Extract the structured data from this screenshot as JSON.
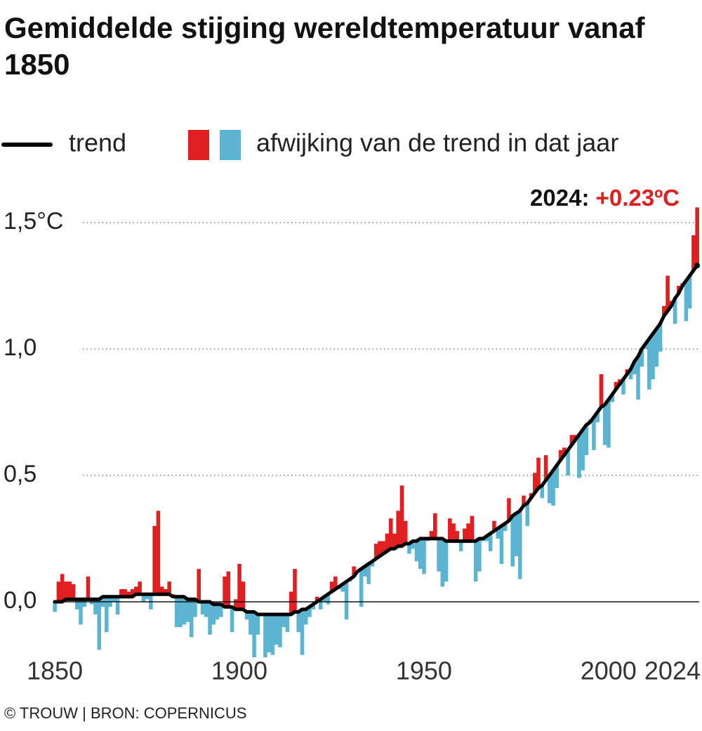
{
  "chart_data": {
    "type": "trend-bar",
    "title": "Gemiddelde stijging wereldtemperatuur vanaf 1850",
    "annotation": {
      "label": "2024:",
      "text": "+0.23ºC"
    },
    "source": "© TROUW | BRON: COPERNICUS",
    "x": [
      1850,
      1851,
      1852,
      1853,
      1854,
      1855,
      1856,
      1857,
      1858,
      1859,
      1860,
      1861,
      1862,
      1863,
      1864,
      1865,
      1866,
      1867,
      1868,
      1869,
      1870,
      1871,
      1872,
      1873,
      1874,
      1875,
      1876,
      1877,
      1878,
      1879,
      1880,
      1881,
      1882,
      1883,
      1884,
      1885,
      1886,
      1887,
      1888,
      1889,
      1890,
      1891,
      1892,
      1893,
      1894,
      1895,
      1896,
      1897,
      1898,
      1899,
      1900,
      1901,
      1902,
      1903,
      1904,
      1905,
      1906,
      1907,
      1908,
      1909,
      1910,
      1911,
      1912,
      1913,
      1914,
      1915,
      1916,
      1917,
      1918,
      1919,
      1920,
      1921,
      1922,
      1923,
      1924,
      1925,
      1926,
      1927,
      1928,
      1929,
      1930,
      1931,
      1932,
      1933,
      1934,
      1935,
      1936,
      1937,
      1938,
      1939,
      1940,
      1941,
      1942,
      1943,
      1944,
      1945,
      1946,
      1947,
      1948,
      1949,
      1950,
      1951,
      1952,
      1953,
      1954,
      1955,
      1956,
      1957,
      1958,
      1959,
      1960,
      1961,
      1962,
      1963,
      1964,
      1965,
      1966,
      1967,
      1968,
      1969,
      1970,
      1971,
      1972,
      1973,
      1974,
      1975,
      1976,
      1977,
      1978,
      1979,
      1980,
      1981,
      1982,
      1983,
      1984,
      1985,
      1986,
      1987,
      1988,
      1989,
      1990,
      1991,
      1992,
      1993,
      1994,
      1995,
      1996,
      1997,
      1998,
      1999,
      2000,
      2001,
      2002,
      2003,
      2004,
      2005,
      2006,
      2007,
      2008,
      2009,
      2010,
      2011,
      2012,
      2013,
      2014,
      2015,
      2016,
      2017,
      2018,
      2019,
      2020,
      2021,
      2022,
      2023,
      2024
    ],
    "series": [
      {
        "name": "trend",
        "color": "#000000",
        "values": [
          0.0,
          0.0,
          0.0,
          0.01,
          0.01,
          0.01,
          0.01,
          0.01,
          0.01,
          0.01,
          0.01,
          0.01,
          0.01,
          0.02,
          0.02,
          0.02,
          0.02,
          0.02,
          0.02,
          0.02,
          0.02,
          0.02,
          0.03,
          0.03,
          0.03,
          0.03,
          0.03,
          0.03,
          0.03,
          0.03,
          0.03,
          0.03,
          0.02,
          0.02,
          0.02,
          0.02,
          0.01,
          0.01,
          0.01,
          0.0,
          0.0,
          0.0,
          0.0,
          -0.01,
          -0.01,
          -0.01,
          -0.02,
          -0.02,
          -0.02,
          -0.03,
          -0.03,
          -0.03,
          -0.04,
          -0.04,
          -0.04,
          -0.05,
          -0.05,
          -0.05,
          -0.05,
          -0.05,
          -0.05,
          -0.05,
          -0.05,
          -0.05,
          -0.05,
          -0.04,
          -0.04,
          -0.03,
          -0.03,
          -0.02,
          -0.01,
          0.0,
          0.01,
          0.02,
          0.03,
          0.04,
          0.05,
          0.06,
          0.07,
          0.08,
          0.09,
          0.1,
          0.12,
          0.13,
          0.14,
          0.15,
          0.16,
          0.17,
          0.18,
          0.19,
          0.2,
          0.21,
          0.21,
          0.22,
          0.22,
          0.23,
          0.23,
          0.24,
          0.24,
          0.25,
          0.25,
          0.25,
          0.25,
          0.25,
          0.25,
          0.25,
          0.24,
          0.24,
          0.24,
          0.24,
          0.24,
          0.24,
          0.24,
          0.24,
          0.24,
          0.25,
          0.25,
          0.26,
          0.27,
          0.28,
          0.29,
          0.3,
          0.31,
          0.32,
          0.34,
          0.35,
          0.36,
          0.38,
          0.39,
          0.41,
          0.43,
          0.45,
          0.46,
          0.48,
          0.5,
          0.52,
          0.54,
          0.56,
          0.58,
          0.6,
          0.62,
          0.64,
          0.66,
          0.68,
          0.7,
          0.71,
          0.73,
          0.75,
          0.77,
          0.78,
          0.8,
          0.82,
          0.84,
          0.86,
          0.88,
          0.9,
          0.92,
          0.95,
          0.97,
          1.0,
          1.02,
          1.04,
          1.06,
          1.08,
          1.1,
          1.13,
          1.15,
          1.17,
          1.2,
          1.22,
          1.25,
          1.27,
          1.29,
          1.31,
          1.33
        ]
      },
      {
        "name": "afwijking van de trend in dat jaar",
        "colors": [
          "#e02020",
          "#5bb4d1"
        ],
        "values": [
          -0.04,
          0.08,
          0.11,
          0.08,
          0.08,
          0.07,
          -0.03,
          -0.09,
          -0.02,
          0.1,
          -0.01,
          -0.05,
          -0.19,
          -0.02,
          -0.12,
          -0.02,
          0.0,
          -0.05,
          0.05,
          0.05,
          0.04,
          0.05,
          0.06,
          0.08,
          0.0,
          0.01,
          -0.03,
          0.3,
          0.36,
          0.06,
          0.05,
          0.08,
          0.03,
          -0.1,
          -0.1,
          -0.09,
          -0.08,
          -0.14,
          -0.06,
          0.13,
          -0.05,
          -0.06,
          -0.13,
          -0.09,
          -0.07,
          -0.06,
          0.1,
          0.12,
          -0.12,
          0.01,
          0.15,
          0.08,
          -0.07,
          -0.13,
          -0.22,
          -0.13,
          -0.05,
          -0.22,
          -0.2,
          -0.21,
          -0.17,
          -0.18,
          -0.1,
          -0.12,
          0.04,
          0.13,
          -0.12,
          -0.21,
          -0.09,
          -0.06,
          -0.03,
          0.02,
          -0.03,
          0.0,
          -0.01,
          0.08,
          0.1,
          0.05,
          0.04,
          -0.07,
          0.08,
          0.14,
          0.12,
          -0.02,
          0.1,
          0.07,
          0.14,
          0.23,
          0.24,
          0.24,
          0.27,
          0.33,
          0.27,
          0.36,
          0.46,
          0.32,
          0.19,
          0.21,
          0.16,
          0.13,
          0.11,
          0.24,
          0.28,
          0.35,
          0.12,
          0.06,
          0.08,
          0.33,
          0.31,
          0.28,
          0.2,
          0.29,
          0.31,
          0.34,
          0.08,
          0.12,
          0.24,
          0.24,
          0.2,
          0.32,
          0.25,
          0.15,
          0.28,
          0.41,
          0.14,
          0.18,
          0.09,
          0.42,
          0.3,
          0.43,
          0.51,
          0.57,
          0.41,
          0.58,
          0.39,
          0.38,
          0.45,
          0.6,
          0.61,
          0.5,
          0.66,
          0.66,
          0.49,
          0.52,
          0.58,
          0.72,
          0.6,
          0.71,
          0.9,
          0.62,
          0.61,
          0.79,
          0.87,
          0.88,
          0.82,
          0.92,
          0.88,
          0.9,
          0.8,
          0.93,
          1.0,
          0.84,
          0.88,
          0.93,
          0.99,
          1.17,
          1.29,
          1.19,
          1.1,
          1.25,
          1.26,
          1.11,
          1.16,
          1.45,
          1.56
        ]
      }
    ],
    "xlim": [
      1850,
      2024
    ],
    "xticks": [
      1850,
      1900,
      1950,
      2000,
      2024
    ],
    "ylim": [
      -0.25,
      1.65
    ],
    "yticks": [
      {
        "value": 0,
        "label": "0,0"
      },
      {
        "value": 0.5,
        "label": "0,5"
      },
      {
        "value": 1,
        "label": "1,0"
      },
      {
        "value": 1.5,
        "label": "1,5°C"
      }
    ],
    "grid": true
  }
}
